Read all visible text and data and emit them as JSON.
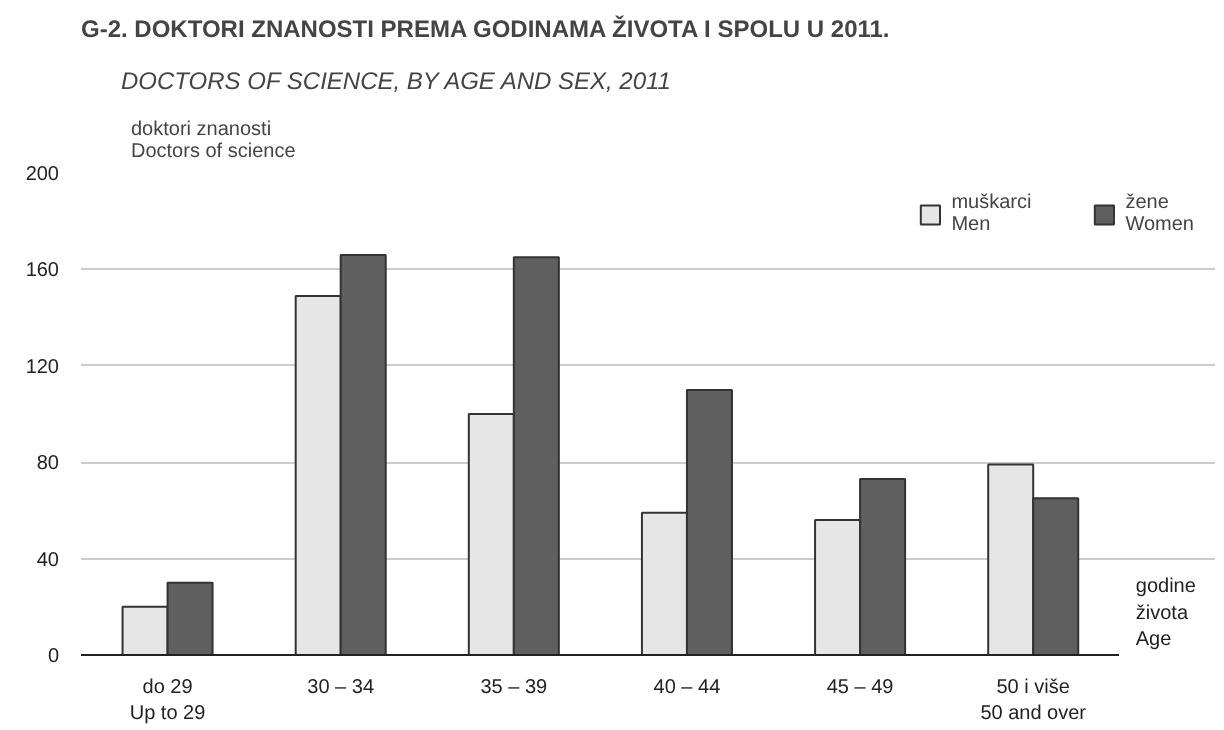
{
  "chart_data": {
    "type": "bar",
    "title": "G-2. DOKTORI ZNANOSTI PREMA GODINAMA ŽIVOTA I SPOLU U 2011.",
    "subtitle": "DOCTORS OF SCIENCE, BY AGE AND SEX, 2011",
    "ylabel": "doktori znanosti\nDoctors of science",
    "xlabel": "godine\nživota\nAge",
    "categories": [
      "do 29\nUp to 29",
      "30 – 34",
      "35 – 39",
      "40 – 44",
      "45 – 49",
      "50 i više\n50 and over"
    ],
    "series": [
      {
        "name": "muškarci\nMen",
        "color": "#e6e6e6",
        "values": [
          20,
          149,
          100,
          59,
          56,
          79
        ]
      },
      {
        "name": "žene\nWomen",
        "color": "#5f5f5f",
        "values": [
          30,
          166,
          165,
          110,
          73,
          65
        ]
      }
    ],
    "ylim": [
      0,
      200
    ],
    "yticks": [
      0,
      40,
      80,
      120,
      160,
      200
    ],
    "grid": "y",
    "legend": "top right"
  }
}
